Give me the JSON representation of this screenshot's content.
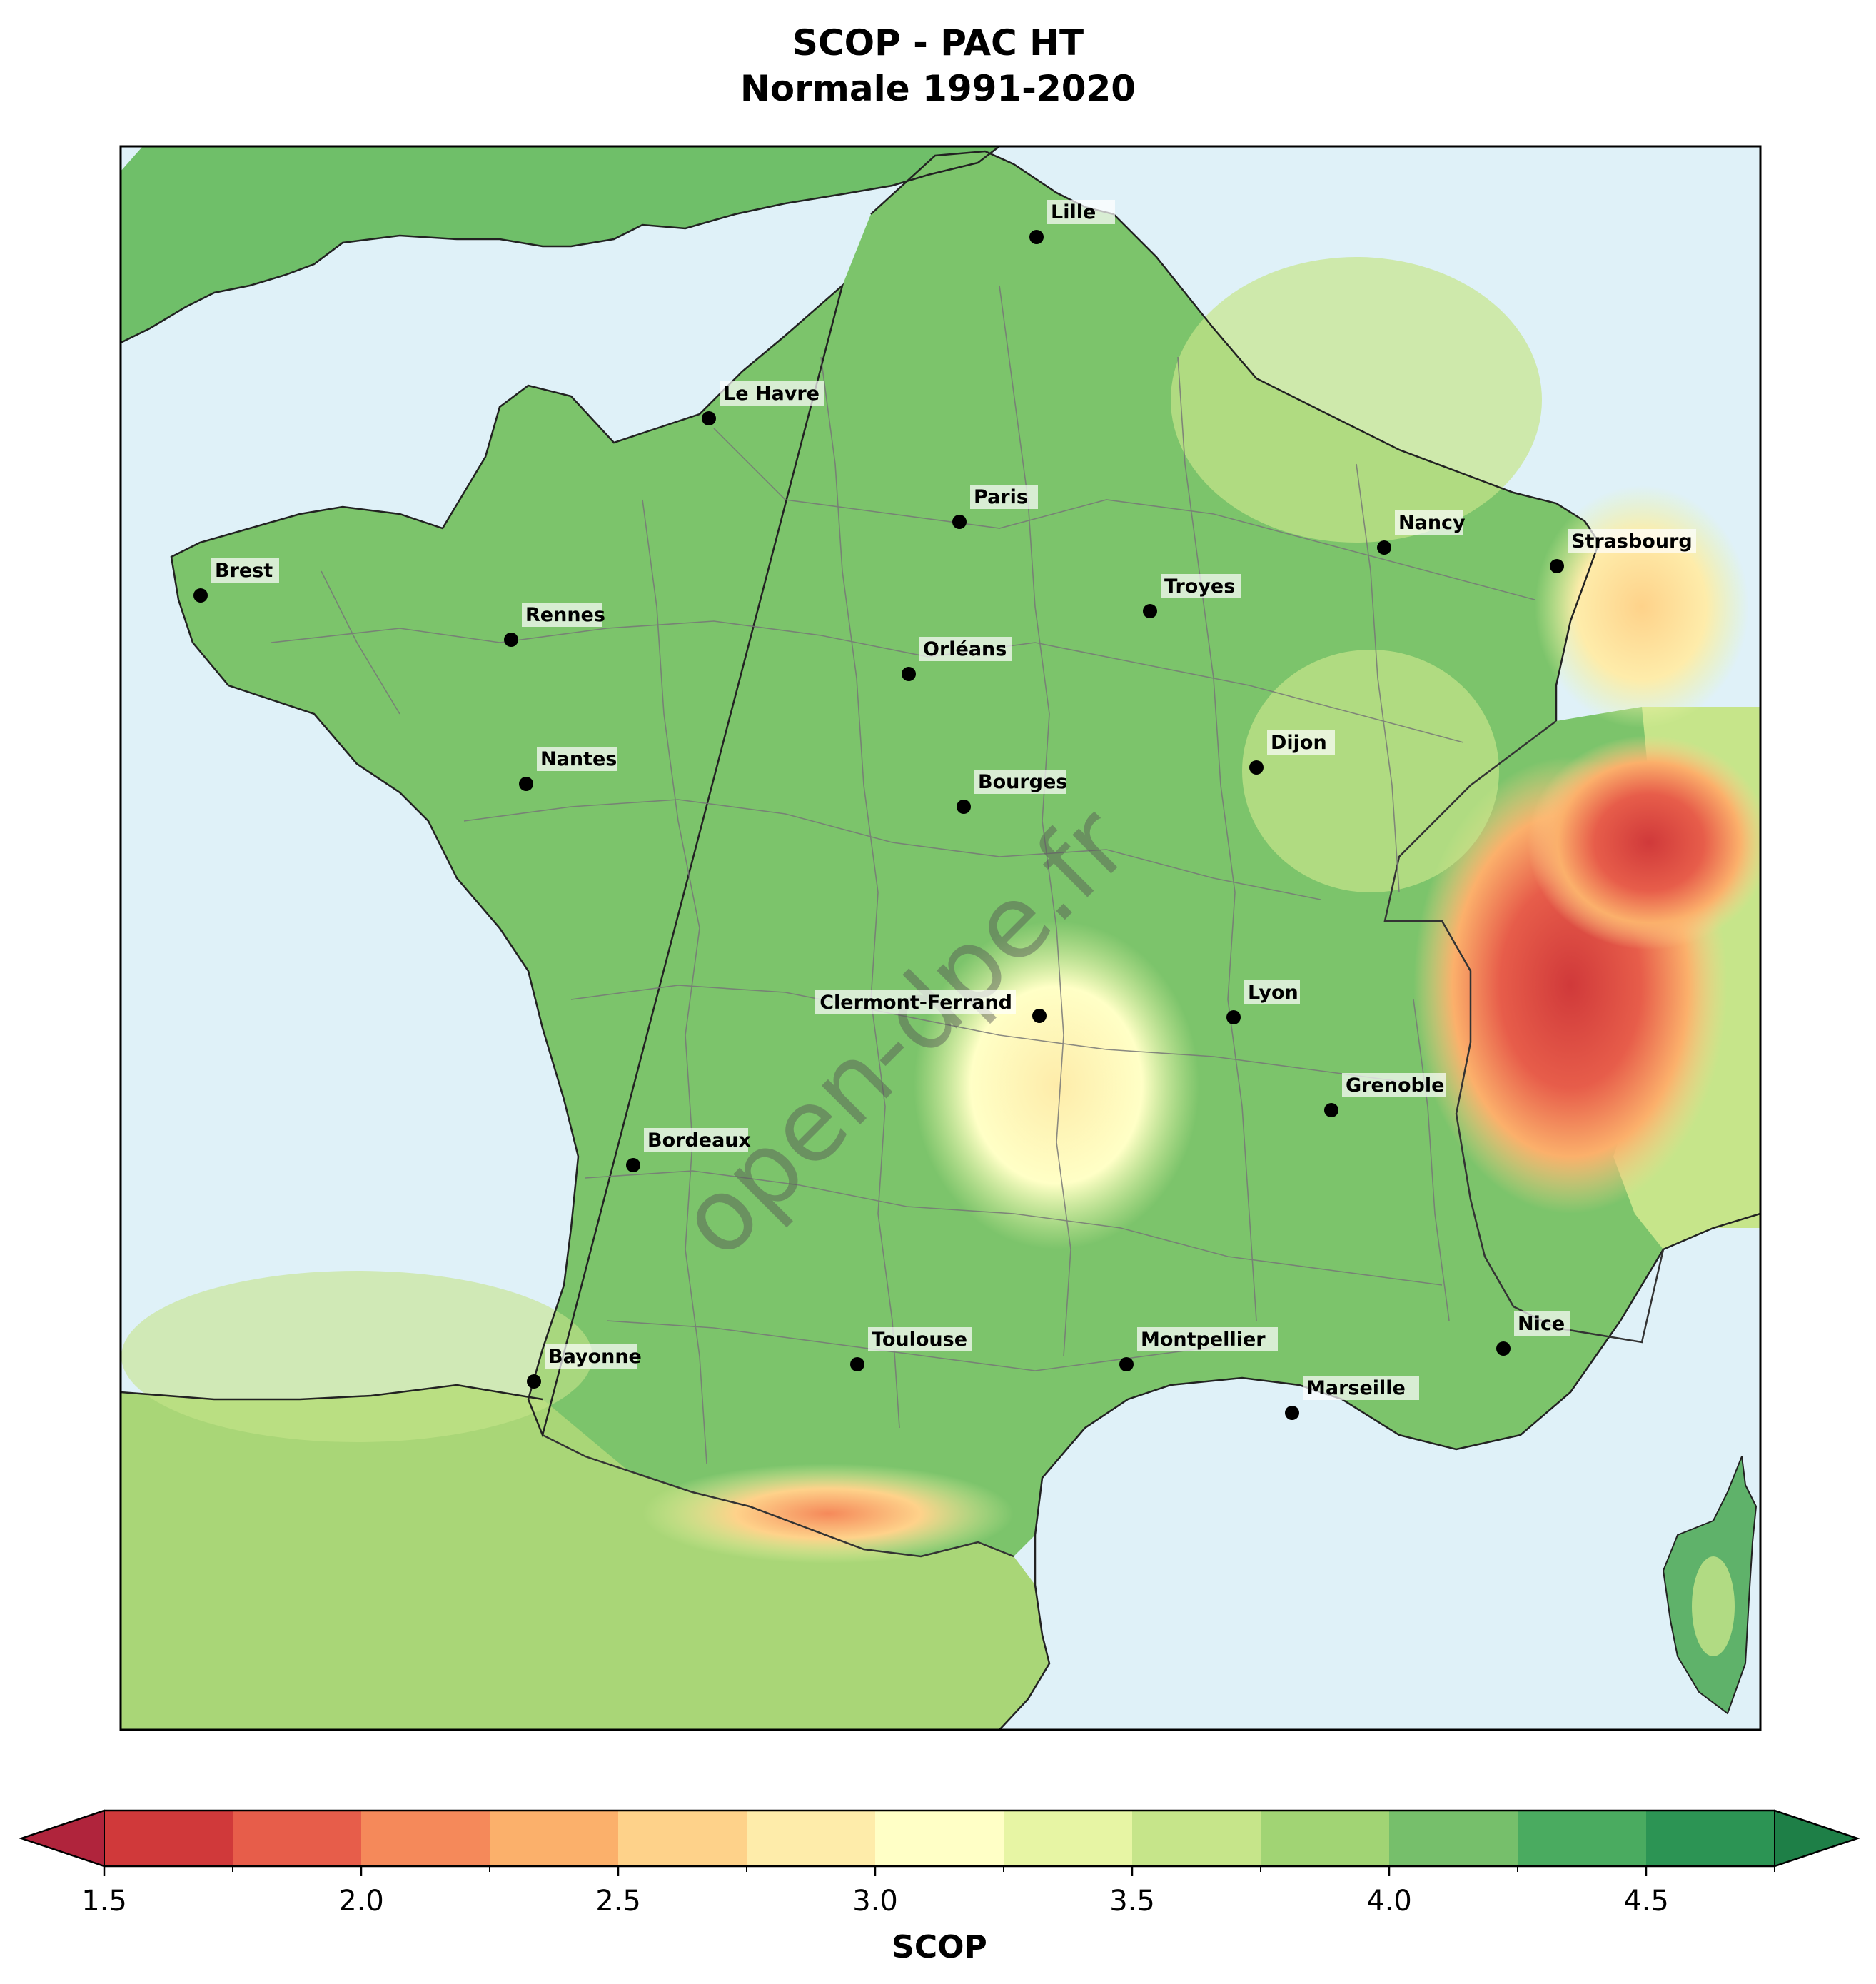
{
  "title": {
    "line1": "SCOP - PAC HT",
    "line2": "Normale 1991-2020"
  },
  "watermark": "open-dpe.fr",
  "cities": [
    {
      "name": "Lille"
    },
    {
      "name": "Le Havre"
    },
    {
      "name": "Paris"
    },
    {
      "name": "Nancy"
    },
    {
      "name": "Strasbourg"
    },
    {
      "name": "Brest"
    },
    {
      "name": "Troyes"
    },
    {
      "name": "Rennes"
    },
    {
      "name": "Orléans"
    },
    {
      "name": "Nantes"
    },
    {
      "name": "Dijon"
    },
    {
      "name": "Bourges"
    },
    {
      "name": "Clermont-Ferrand"
    },
    {
      "name": "Lyon"
    },
    {
      "name": "Grenoble"
    },
    {
      "name": "Bordeaux"
    },
    {
      "name": "Toulouse"
    },
    {
      "name": "Montpellier"
    },
    {
      "name": "Nice"
    },
    {
      "name": "Bayonne"
    },
    {
      "name": "Marseille"
    }
  ],
  "colorbar": {
    "label": "SCOP",
    "min": 1.5,
    "max": 4.75,
    "step": 0.25,
    "extend": "both",
    "ticks": [
      "1.5",
      "2.0",
      "2.5",
      "3.0",
      "3.5",
      "4.0",
      "4.5"
    ],
    "colors": [
      "#d0393a",
      "#e75d4a",
      "#f5895a",
      "#fbb06b",
      "#fed28a",
      "#feecaa",
      "#ffffc6",
      "#e7f5a4",
      "#c6e58a",
      "#a1d474",
      "#76bf6b",
      "#4aab60",
      "#2c9454"
    ],
    "under_color": "#b0243c",
    "over_color": "#1e7f47"
  },
  "colors": {
    "sea": "#dff1f8",
    "land_default": "#7cc46b"
  }
}
